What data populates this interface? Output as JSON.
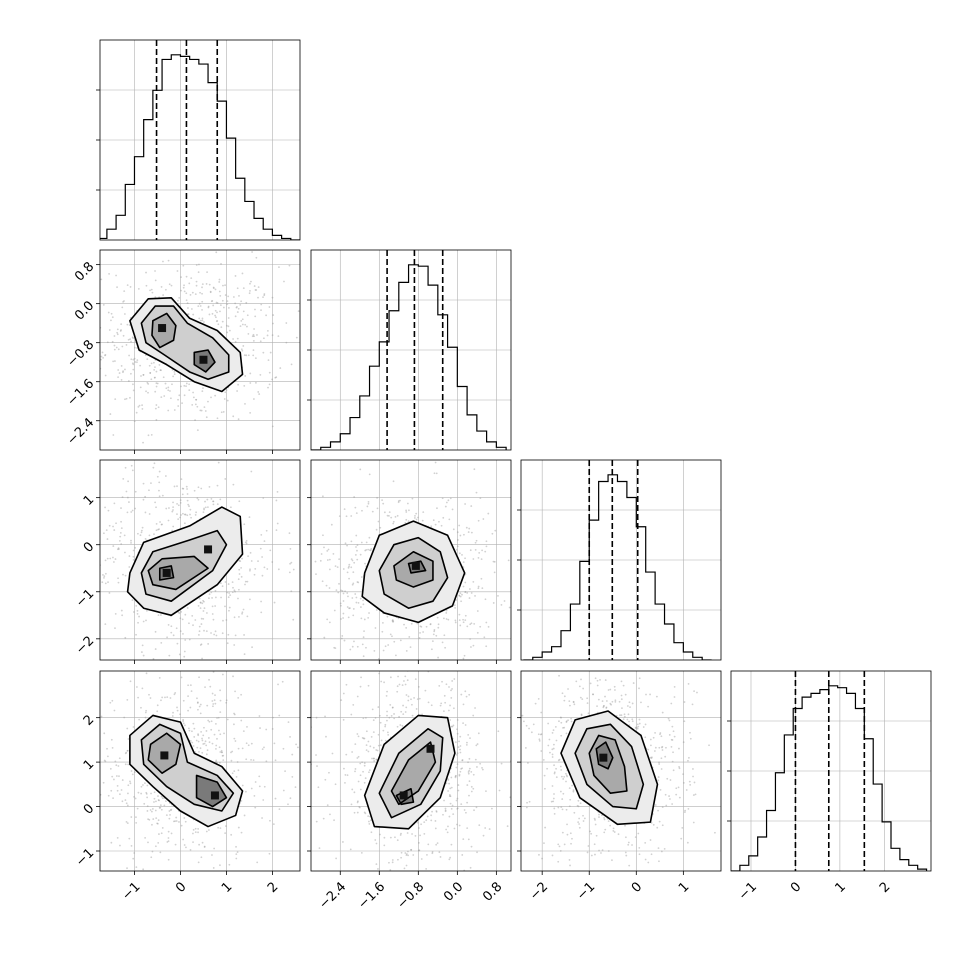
{
  "chart_data": {
    "type": "corner",
    "grid": true,
    "parameters": [
      {
        "median": 0.13,
        "quantiles": [
          -0.52,
          0.13,
          0.8
        ],
        "range": [
          -1.75,
          2.6
        ],
        "ticks": [
          -1,
          0,
          1,
          2
        ],
        "tick_labels": [
          "−1",
          "0",
          "1",
          "2"
        ],
        "histogram": {
          "bin_edges": [
            -1.8,
            -1.6,
            -1.4,
            -1.2,
            -1.0,
            -0.8,
            -0.6,
            -0.4,
            -0.2,
            0.0,
            0.2,
            0.4,
            0.6,
            0.8,
            1.0,
            1.2,
            1.4,
            1.6,
            1.8,
            2.0,
            2.2,
            2.4,
            2.6
          ],
          "counts": [
            1,
            7,
            16,
            36,
            54,
            78,
            97,
            117,
            120,
            119,
            117,
            114,
            102,
            90,
            66,
            40,
            25,
            14,
            7,
            3,
            1,
            0
          ]
        }
      },
      {
        "median": -0.88,
        "quantiles": [
          -1.44,
          -0.88,
          -0.3
        ],
        "range": [
          -3.0,
          1.1
        ],
        "ticks": [
          -2.4,
          -1.6,
          -0.8,
          0.0,
          0.8
        ],
        "tick_labels": [
          "−2.4",
          "−1.6",
          "−0.8",
          "0.0",
          "0.8"
        ],
        "histogram": {
          "bin_edges": [
            -3.0,
            -2.8,
            -2.6,
            -2.4,
            -2.2,
            -2.0,
            -1.8,
            -1.6,
            -1.4,
            -1.2,
            -1.0,
            -0.8,
            -0.6,
            -0.4,
            -0.2,
            0.0,
            0.2,
            0.4,
            0.6,
            0.8,
            1.0
          ],
          "counts": [
            0,
            2,
            6,
            12,
            24,
            40,
            62,
            80,
            103,
            124,
            137,
            136,
            122,
            100,
            76,
            47,
            26,
            14,
            6,
            2
          ]
        }
      },
      {
        "median": -0.51,
        "quantiles": [
          -1.0,
          -0.51,
          0.03
        ],
        "range": [
          -2.45,
          1.8
        ],
        "ticks": [
          -2,
          -1,
          0,
          1
        ],
        "tick_labels": [
          "−2",
          "−1",
          "0",
          "1"
        ],
        "histogram": {
          "bin_edges": [
            -2.4,
            -2.2,
            -2.0,
            -1.8,
            -1.6,
            -1.4,
            -1.2,
            -1.0,
            -0.8,
            -0.6,
            -0.4,
            -0.2,
            0.0,
            0.2,
            0.4,
            0.6,
            0.8,
            1.0,
            1.2,
            1.4,
            1.6
          ],
          "counts": [
            0,
            2,
            6,
            10,
            22,
            42,
            74,
            105,
            134,
            139,
            134,
            122,
            100,
            66,
            42,
            27,
            13,
            6,
            2,
            0
          ]
        }
      },
      {
        "median": 0.75,
        "quantiles": [
          0.0,
          0.75,
          1.55
        ],
        "range": [
          -1.45,
          3.05
        ],
        "ticks": [
          -1,
          0,
          1,
          2
        ],
        "tick_labels": [
          "−1",
          "0",
          "1",
          "2"
        ],
        "histogram": {
          "bin_edges": [
            -1.45,
            -1.25,
            -1.05,
            -0.85,
            -0.65,
            -0.45,
            -0.25,
            -0.05,
            0.15,
            0.35,
            0.55,
            0.75,
            0.95,
            1.15,
            1.35,
            1.55,
            1.75,
            1.95,
            2.15,
            2.35,
            2.55,
            2.75,
            2.95
          ],
          "counts": [
            0,
            3,
            8,
            18,
            32,
            52,
            72,
            86,
            92,
            94,
            96,
            98,
            97,
            94,
            86,
            70,
            46,
            26,
            12,
            6,
            3,
            1
          ]
        }
      }
    ],
    "pairs": [
      {
        "x_param": 0,
        "y_param": 1,
        "modes": [
          [
            -0.4,
            -0.5
          ],
          [
            0.5,
            -1.15
          ]
        ],
        "contour_levels": [
          [
            [
              -1.1,
              -0.35
            ],
            [
              -0.7,
              0.1
            ],
            [
              -0.2,
              0.12
            ],
            [
              0.2,
              -0.3
            ],
            [
              0.8,
              -0.55
            ],
            [
              1.3,
              -1.0
            ],
            [
              1.35,
              -1.45
            ],
            [
              0.9,
              -1.8
            ],
            [
              0.3,
              -1.6
            ],
            [
              -0.3,
              -1.25
            ],
            [
              -0.9,
              -0.95
            ]
          ],
          [
            [
              -0.85,
              -0.4
            ],
            [
              -0.55,
              -0.05
            ],
            [
              -0.15,
              -0.05
            ],
            [
              0.15,
              -0.4
            ],
            [
              0.7,
              -0.7
            ],
            [
              1.05,
              -1.05
            ],
            [
              1.05,
              -1.4
            ],
            [
              0.6,
              -1.55
            ],
            [
              0.2,
              -1.4
            ],
            [
              -0.35,
              -1.05
            ],
            [
              -0.75,
              -0.8
            ]
          ],
          [
            [
              -0.6,
              -0.35
            ],
            [
              -0.3,
              -0.2
            ],
            [
              -0.1,
              -0.45
            ],
            [
              -0.15,
              -0.75
            ],
            [
              -0.45,
              -0.9
            ],
            [
              -0.62,
              -0.65
            ]
          ],
          [
            [
              0.3,
              -1.0
            ],
            [
              0.6,
              -0.95
            ],
            [
              0.75,
              -1.2
            ],
            [
              0.55,
              -1.4
            ],
            [
              0.3,
              -1.25
            ]
          ]
        ]
      },
      {
        "x_param": 0,
        "y_param": 2,
        "modes": [
          [
            -0.3,
            -0.6
          ],
          [
            0.6,
            -0.1
          ]
        ],
        "contour_levels": [
          [
            [
              -1.1,
              -0.6
            ],
            [
              -0.8,
              0.05
            ],
            [
              0.2,
              0.4
            ],
            [
              0.9,
              0.8
            ],
            [
              1.3,
              0.6
            ],
            [
              1.35,
              -0.2
            ],
            [
              0.8,
              -0.85
            ],
            [
              -0.2,
              -1.5
            ],
            [
              -0.8,
              -1.35
            ],
            [
              -1.15,
              -1.0
            ]
          ],
          [
            [
              -0.85,
              -0.6
            ],
            [
              -0.6,
              -0.15
            ],
            [
              0.2,
              0.1
            ],
            [
              0.8,
              0.3
            ],
            [
              1.0,
              0.0
            ],
            [
              0.7,
              -0.55
            ],
            [
              -0.2,
              -1.2
            ],
            [
              -0.75,
              -1.05
            ]
          ],
          [
            [
              -0.7,
              -0.55
            ],
            [
              -0.4,
              -0.3
            ],
            [
              0.3,
              -0.25
            ],
            [
              0.6,
              -0.5
            ],
            [
              -0.1,
              -0.95
            ],
            [
              -0.6,
              -0.85
            ]
          ],
          [
            [
              -0.45,
              -0.5
            ],
            [
              -0.2,
              -0.45
            ],
            [
              -0.15,
              -0.7
            ],
            [
              -0.45,
              -0.75
            ]
          ]
        ]
      },
      {
        "x_param": 1,
        "y_param": 2,
        "modes": [
          [
            -0.85,
            -0.45
          ]
        ],
        "contour_levels": [
          [
            [
              -1.9,
              -0.6
            ],
            [
              -1.6,
              0.2
            ],
            [
              -0.9,
              0.5
            ],
            [
              -0.2,
              0.2
            ],
            [
              0.15,
              -0.6
            ],
            [
              -0.1,
              -1.3
            ],
            [
              -0.8,
              -1.65
            ],
            [
              -1.5,
              -1.45
            ],
            [
              -1.95,
              -1.1
            ]
          ],
          [
            [
              -1.6,
              -0.55
            ],
            [
              -1.3,
              0.0
            ],
            [
              -0.8,
              0.15
            ],
            [
              -0.35,
              -0.15
            ],
            [
              -0.2,
              -0.7
            ],
            [
              -0.5,
              -1.2
            ],
            [
              -1.0,
              -1.35
            ],
            [
              -1.5,
              -1.05
            ]
          ],
          [
            [
              -1.3,
              -0.45
            ],
            [
              -0.9,
              -0.15
            ],
            [
              -0.5,
              -0.35
            ],
            [
              -0.5,
              -0.75
            ],
            [
              -0.9,
              -0.9
            ],
            [
              -1.25,
              -0.75
            ]
          ],
          [
            [
              -1.0,
              -0.4
            ],
            [
              -0.75,
              -0.35
            ],
            [
              -0.65,
              -0.55
            ],
            [
              -0.95,
              -0.6
            ]
          ]
        ]
      },
      {
        "x_param": 0,
        "y_param": 3,
        "modes": [
          [
            -0.35,
            1.15
          ],
          [
            0.75,
            0.25
          ]
        ],
        "contour_levels": [
          [
            [
              -1.1,
              1.6
            ],
            [
              -0.6,
              2.05
            ],
            [
              0.0,
              1.9
            ],
            [
              0.3,
              1.2
            ],
            [
              0.9,
              0.9
            ],
            [
              1.35,
              0.35
            ],
            [
              1.2,
              -0.2
            ],
            [
              0.6,
              -0.45
            ],
            [
              0.0,
              -0.1
            ],
            [
              -0.6,
              0.45
            ],
            [
              -1.1,
              0.95
            ]
          ],
          [
            [
              -0.85,
              1.5
            ],
            [
              -0.45,
              1.85
            ],
            [
              0.0,
              1.65
            ],
            [
              0.15,
              1.0
            ],
            [
              0.8,
              0.7
            ],
            [
              1.15,
              0.3
            ],
            [
              0.9,
              -0.1
            ],
            [
              0.3,
              0.05
            ],
            [
              -0.3,
              0.45
            ],
            [
              -0.8,
              0.95
            ]
          ],
          [
            [
              -0.65,
              1.4
            ],
            [
              -0.3,
              1.65
            ],
            [
              0.0,
              1.4
            ],
            [
              -0.1,
              0.95
            ],
            [
              -0.4,
              0.75
            ],
            [
              -0.7,
              1.05
            ]
          ],
          [
            [
              0.35,
              0.7
            ],
            [
              0.8,
              0.55
            ],
            [
              1.0,
              0.2
            ],
            [
              0.7,
              0.0
            ],
            [
              0.35,
              0.2
            ]
          ]
        ]
      },
      {
        "x_param": 1,
        "y_param": 3,
        "modes": [
          [
            -1.1,
            0.25
          ],
          [
            -0.55,
            1.3
          ]
        ],
        "contour_levels": [
          [
            [
              -1.9,
              0.25
            ],
            [
              -1.5,
              1.4
            ],
            [
              -0.8,
              2.05
            ],
            [
              -0.2,
              2.0
            ],
            [
              -0.05,
              1.2
            ],
            [
              -0.35,
              0.2
            ],
            [
              -1.0,
              -0.5
            ],
            [
              -1.7,
              -0.45
            ]
          ],
          [
            [
              -1.6,
              0.3
            ],
            [
              -1.2,
              1.2
            ],
            [
              -0.6,
              1.75
            ],
            [
              -0.3,
              1.55
            ],
            [
              -0.35,
              0.8
            ],
            [
              -0.75,
              0.05
            ],
            [
              -1.35,
              -0.25
            ]
          ],
          [
            [
              -1.35,
              0.35
            ],
            [
              -1.0,
              1.05
            ],
            [
              -0.55,
              1.45
            ],
            [
              -0.45,
              1.0
            ],
            [
              -0.8,
              0.35
            ],
            [
              -1.2,
              0.05
            ]
          ],
          [
            [
              -1.25,
              0.25
            ],
            [
              -0.95,
              0.4
            ],
            [
              -0.9,
              0.1
            ],
            [
              -1.15,
              0.05
            ]
          ]
        ]
      },
      {
        "x_param": 2,
        "y_param": 3,
        "modes": [
          [
            -0.7,
            1.1
          ]
        ],
        "contour_levels": [
          [
            [
              -1.6,
              1.2
            ],
            [
              -1.3,
              1.95
            ],
            [
              -0.6,
              2.15
            ],
            [
              0.1,
              1.6
            ],
            [
              0.45,
              0.5
            ],
            [
              0.3,
              -0.35
            ],
            [
              -0.4,
              -0.4
            ],
            [
              -1.2,
              0.2
            ]
          ],
          [
            [
              -1.3,
              1.2
            ],
            [
              -1.05,
              1.75
            ],
            [
              -0.55,
              1.85
            ],
            [
              -0.1,
              1.35
            ],
            [
              0.15,
              0.5
            ],
            [
              0.0,
              -0.05
            ],
            [
              -0.5,
              0.0
            ],
            [
              -1.05,
              0.5
            ]
          ],
          [
            [
              -1.0,
              1.2
            ],
            [
              -0.8,
              1.6
            ],
            [
              -0.45,
              1.5
            ],
            [
              -0.25,
              0.9
            ],
            [
              -0.2,
              0.35
            ],
            [
              -0.55,
              0.3
            ],
            [
              -0.9,
              0.7
            ]
          ],
          [
            [
              -0.85,
              1.3
            ],
            [
              -0.65,
              1.45
            ],
            [
              -0.5,
              1.1
            ],
            [
              -0.6,
              0.85
            ],
            [
              -0.8,
              0.95
            ]
          ]
        ]
      }
    ]
  }
}
